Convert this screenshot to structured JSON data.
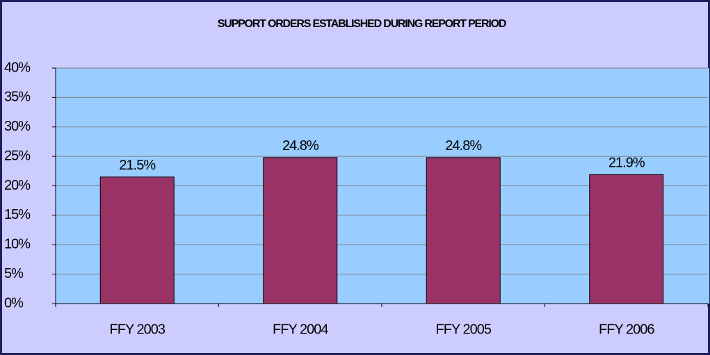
{
  "chart_data": {
    "type": "bar",
    "title": "SUPPORT ORDERS ESTABLISHED DURING REPORT PERIOD",
    "categories": [
      "FFY 2003",
      "FFY 2004",
      "FFY 2005",
      "FFY 2006"
    ],
    "values": [
      21.5,
      24.8,
      24.8,
      21.9
    ],
    "value_labels": [
      "21.5%",
      "24.8%",
      "24.8%",
      "21.9%"
    ],
    "color": "#993366",
    "ylim": [
      0,
      40
    ],
    "yticks": [
      {
        "value": 0,
        "label": "0%"
      },
      {
        "value": 5,
        "label": "5%"
      },
      {
        "value": 10,
        "label": "10%"
      },
      {
        "value": 15,
        "label": "15%"
      },
      {
        "value": 20,
        "label": "20%"
      },
      {
        "value": 25,
        "label": "25%"
      },
      {
        "value": 30,
        "label": "30%"
      },
      {
        "value": 35,
        "label": "35%"
      },
      {
        "value": 40,
        "label": "40%"
      }
    ],
    "grid": true
  }
}
